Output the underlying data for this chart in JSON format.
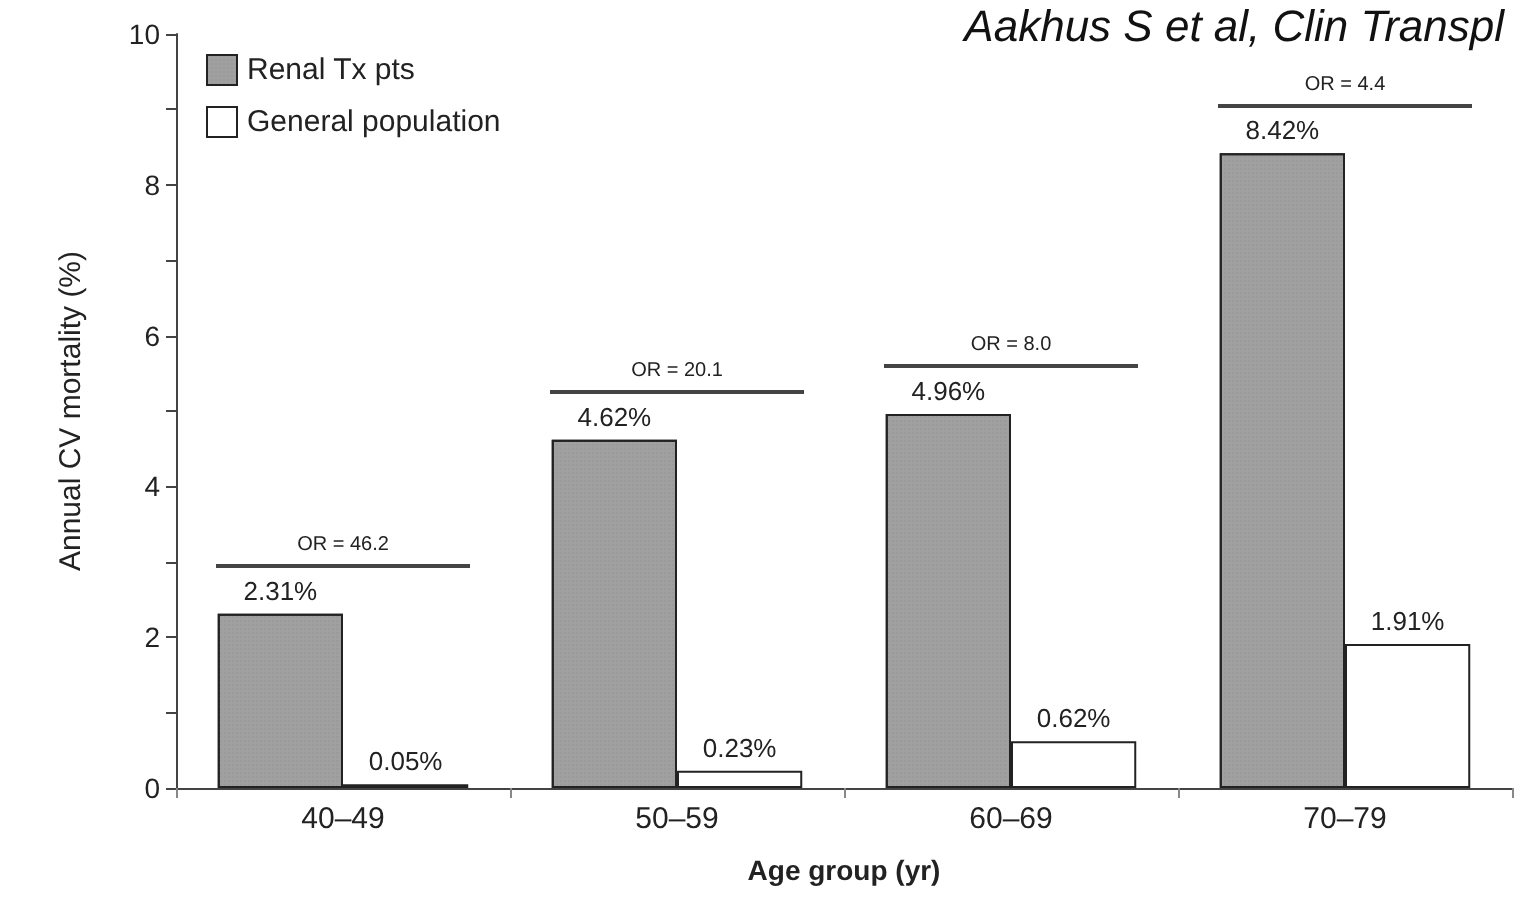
{
  "chart_data": {
    "type": "bar",
    "xlabel": "Age group (yr)",
    "ylabel": "Annual CV mortality (%)",
    "categories": [
      "40–49",
      "50–59",
      "60–69",
      "70–79"
    ],
    "series": [
      {
        "name": "Renal Tx pts",
        "color": "#a0a0a0",
        "values": [
          2.31,
          4.62,
          4.96,
          8.42
        ],
        "value_labels": [
          "2.31%",
          "4.62%",
          "4.96%",
          "8.42%"
        ]
      },
      {
        "name": "General population",
        "color": "#ffffff",
        "values": [
          0.05,
          0.23,
          0.62,
          1.91
        ],
        "value_labels": [
          "0.05%",
          "0.23%",
          "0.62%",
          "1.91%"
        ]
      }
    ],
    "ylim": [
      0,
      10
    ],
    "yticks": [
      0,
      {
        "value": 1,
        "label": null
      },
      2,
      {
        "value": 3,
        "label": null
      },
      4,
      {
        "value": 5,
        "label": null
      },
      6,
      {
        "value": 7,
        "label": null
      },
      8,
      {
        "value": 9,
        "label": null
      },
      10
    ],
    "grid": false,
    "legend": "top left",
    "annotations": [
      "Aakhus S et al, Clin Transpl",
      "OR = 46.2",
      "OR = 20.1",
      "OR = 8.0",
      "OR = 4.4"
    ]
  }
}
